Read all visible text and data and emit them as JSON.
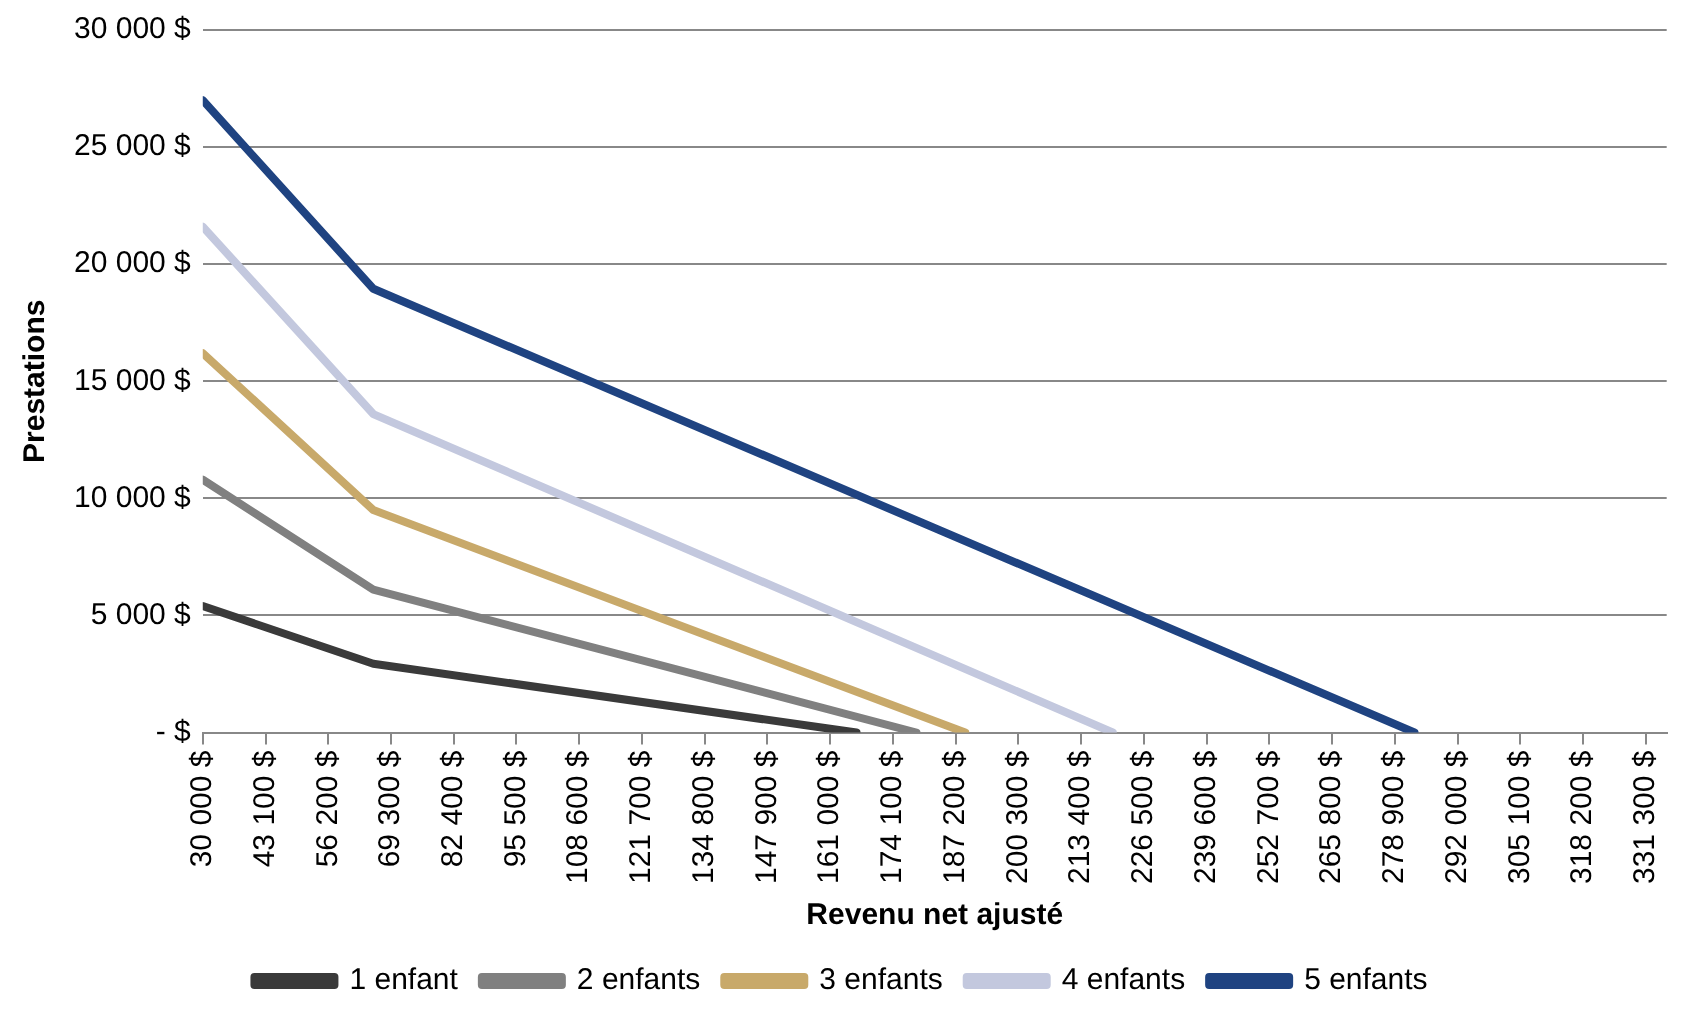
{
  "chart_data": {
    "type": "line",
    "xlabel": "Revenu net ajusté",
    "ylabel": "Prestations",
    "xlim": [
      30000,
      335667
    ],
    "xticks": [
      {
        "value": 30000,
        "label": "30 000 $"
      },
      {
        "value": 43100,
        "label": "43 100 $"
      },
      {
        "value": 56200,
        "label": "56 200 $"
      },
      {
        "value": 69300,
        "label": "69 300 $"
      },
      {
        "value": 82400,
        "label": "82 400 $"
      },
      {
        "value": 95500,
        "label": "95 500 $"
      },
      {
        "value": 108600,
        "label": "108 600 $"
      },
      {
        "value": 121700,
        "label": "121 700 $"
      },
      {
        "value": 134800,
        "label": "134 800 $"
      },
      {
        "value": 147900,
        "label": "147 900 $"
      },
      {
        "value": 161000,
        "label": "161 000 $"
      },
      {
        "value": 174100,
        "label": "174 100 $"
      },
      {
        "value": 187200,
        "label": "187 200 $"
      },
      {
        "value": 200300,
        "label": "200 300 $"
      },
      {
        "value": 213400,
        "label": "213 400 $"
      },
      {
        "value": 226500,
        "label": "226 500 $"
      },
      {
        "value": 239600,
        "label": "239 600 $"
      },
      {
        "value": 252700,
        "label": "252 700 $"
      },
      {
        "value": 265800,
        "label": "265 800 $"
      },
      {
        "value": 278900,
        "label": "278 900 $"
      },
      {
        "value": 292000,
        "label": "292 000 $"
      },
      {
        "value": 305100,
        "label": "305 100 $"
      },
      {
        "value": 318200,
        "label": "318 200 $"
      },
      {
        "value": 331300,
        "label": "331 300 $"
      }
    ],
    "ylim": [
      0,
      30000
    ],
    "yticks": [
      {
        "value": 0,
        "label": "- $"
      },
      {
        "value": 5000,
        "label": "5 000 $"
      },
      {
        "value": 10000,
        "label": "10 000 $"
      },
      {
        "value": 15000,
        "label": "15 000 $"
      },
      {
        "value": 20000,
        "label": "20 000 $"
      },
      {
        "value": 25000,
        "label": "25 000 $"
      },
      {
        "value": 30000,
        "label": "30 000 $"
      }
    ],
    "grid": "y",
    "legend": "bottom",
    "marker": "none",
    "line_style": "solid",
    "series": [
      {
        "name": "1 enfant",
        "color": "#3a3a3a",
        "x": [
          30000,
          65600,
          166500
        ],
        "values": [
          5400,
          2940,
          0
        ]
      },
      {
        "name": "2 enfants",
        "color": "#808080",
        "x": [
          30000,
          65600,
          179000
        ],
        "values": [
          10800,
          6100,
          0
        ]
      },
      {
        "name": "3 enfants",
        "color": "#c8a96a",
        "x": [
          30000,
          65600,
          189200
        ],
        "values": [
          16200,
          9500,
          0
        ]
      },
      {
        "name": "4 enfants",
        "color": "#c3c8de",
        "x": [
          30000,
          65600,
          220000
        ],
        "values": [
          21600,
          13600,
          0
        ]
      },
      {
        "name": "5 enfants",
        "color": "#1f4381",
        "x": [
          30000,
          65600,
          283000
        ],
        "values": [
          27000,
          18950,
          0
        ]
      }
    ]
  }
}
